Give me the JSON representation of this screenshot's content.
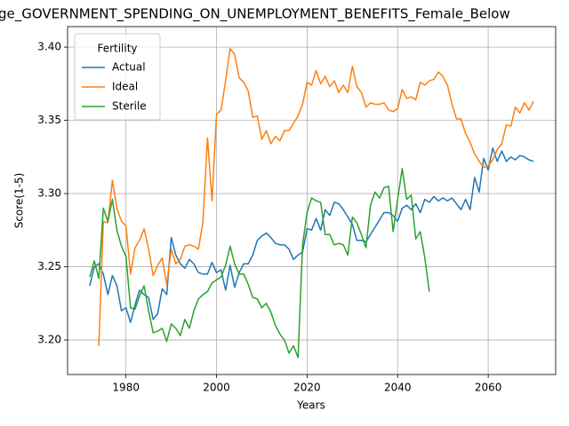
{
  "chart_data": {
    "type": "line",
    "title": "ge_GOVERNMENT_SPENDING_ON_UNEMPLOYMENT_BENEFITS_Female_Below",
    "x_label": "Years",
    "y_label": "Score(1-5)",
    "legend_title": "Fertility",
    "legend_loc": "upper left",
    "grid": true,
    "x": [
      1972,
      1973,
      1974,
      1975,
      1976,
      1977,
      1978,
      1979,
      1980,
      1981,
      1982,
      1983,
      1984,
      1985,
      1986,
      1987,
      1988,
      1989,
      1990,
      1991,
      1992,
      1993,
      1994,
      1995,
      1996,
      1997,
      1998,
      1999,
      2000,
      2001,
      2002,
      2003,
      2004,
      2005,
      2006,
      2007,
      2008,
      2009,
      2010,
      2011,
      2012,
      2013,
      2014,
      2015,
      2016,
      2017,
      2018,
      2019,
      2020,
      2021,
      2022,
      2023,
      2024,
      2025,
      2026,
      2027,
      2028,
      2029,
      2030,
      2031,
      2032,
      2033,
      2034,
      2035,
      2036,
      2037,
      2038,
      2039,
      2040,
      2041,
      2042,
      2043,
      2044,
      2045,
      2046,
      2047,
      2048,
      2049,
      2050,
      2051,
      2052,
      2053,
      2054,
      2055,
      2056,
      2057,
      2058,
      2059,
      2060,
      2061,
      2062,
      2063,
      2064,
      2065,
      2066,
      2067,
      2068,
      2069,
      2070
    ],
    "series": [
      {
        "name": "Actual",
        "color": "#1f77b4",
        "values": [
          3.237,
          3.25,
          3.252,
          3.245,
          3.231,
          3.244,
          3.237,
          3.22,
          3.222,
          3.212,
          3.224,
          3.234,
          3.231,
          3.229,
          3.214,
          3.218,
          3.235,
          3.231,
          3.27,
          3.258,
          3.252,
          3.249,
          3.255,
          3.252,
          3.246,
          3.245,
          3.245,
          3.253,
          3.246,
          3.248,
          3.234,
          3.251,
          3.236,
          3.246,
          3.252,
          3.252,
          3.258,
          3.268,
          3.271,
          3.273,
          3.27,
          3.266,
          3.265,
          3.265,
          3.262,
          3.255,
          3.258,
          3.26,
          3.276,
          3.275,
          3.283,
          3.275,
          3.289,
          3.285,
          3.294,
          3.293,
          3.289,
          3.284,
          3.279,
          3.268,
          3.268,
          3.267,
          3.272,
          3.277,
          3.282,
          3.287,
          3.287,
          3.285,
          3.281,
          3.29,
          3.292,
          3.289,
          3.293,
          3.287,
          3.296,
          3.294,
          3.298,
          3.295,
          3.297,
          3.295,
          3.297,
          3.293,
          3.289,
          3.296,
          3.289,
          3.311,
          3.301,
          3.324,
          3.316,
          3.331,
          3.322,
          3.329,
          3.322,
          3.325,
          3.323,
          3.326,
          3.325,
          3.323,
          3.322
        ]
      },
      {
        "name": "Ideal",
        "color": "#ff7f0e",
        "values": [
          null,
          null,
          3.196,
          3.281,
          3.28,
          3.309,
          3.29,
          3.281,
          3.278,
          3.245,
          3.263,
          3.268,
          3.276,
          3.262,
          3.244,
          3.251,
          3.256,
          3.238,
          3.262,
          3.252,
          3.255,
          3.264,
          3.265,
          3.264,
          3.262,
          3.281,
          3.338,
          3.295,
          3.354,
          3.357,
          3.377,
          3.399,
          3.395,
          3.379,
          3.376,
          3.37,
          3.352,
          3.353,
          3.337,
          3.343,
          3.334,
          3.339,
          3.336,
          3.343,
          3.343,
          3.348,
          3.353,
          3.361,
          3.376,
          3.374,
          3.384,
          3.375,
          3.38,
          3.373,
          3.377,
          3.369,
          3.374,
          3.369,
          3.387,
          3.373,
          3.369,
          3.359,
          3.362,
          3.361,
          3.361,
          3.362,
          3.357,
          3.356,
          3.358,
          3.371,
          3.365,
          3.366,
          3.364,
          3.376,
          3.374,
          3.377,
          3.378,
          3.383,
          3.38,
          3.374,
          3.361,
          3.351,
          3.351,
          3.341,
          3.335,
          3.327,
          3.322,
          3.318,
          3.319,
          3.323,
          3.33,
          3.334,
          3.347,
          3.346,
          3.359,
          3.355,
          3.362,
          3.357,
          3.363
        ]
      },
      {
        "name": "Sterile",
        "color": "#2ca02c",
        "values": [
          3.243,
          3.254,
          3.242,
          3.29,
          3.281,
          3.296,
          3.275,
          3.264,
          3.257,
          3.222,
          3.221,
          3.23,
          3.237,
          3.22,
          3.205,
          3.206,
          3.208,
          3.199,
          3.211,
          3.208,
          3.203,
          3.214,
          3.208,
          3.22,
          3.228,
          3.231,
          3.233,
          3.239,
          3.241,
          3.243,
          3.251,
          3.264,
          3.252,
          3.245,
          3.245,
          3.238,
          3.229,
          3.228,
          3.222,
          3.225,
          3.219,
          3.21,
          3.204,
          3.2,
          3.191,
          3.196,
          3.188,
          3.265,
          3.287,
          3.297,
          3.295,
          3.294,
          3.272,
          3.272,
          3.265,
          3.266,
          3.265,
          3.258,
          3.284,
          3.28,
          3.272,
          3.263,
          3.292,
          3.301,
          3.297,
          3.304,
          3.305,
          3.274,
          3.296,
          3.317,
          3.296,
          3.299,
          3.269,
          3.274,
          3.256,
          3.233,
          null,
          null,
          null,
          null,
          null,
          null,
          null,
          null,
          null,
          null,
          null,
          null,
          null,
          null,
          null,
          null,
          null,
          null,
          null,
          null,
          null,
          null,
          null
        ]
      }
    ],
    "xlim": [
      1967.1,
      2074.9
    ],
    "xticks": [
      1980,
      2000,
      2020,
      2040,
      2060
    ],
    "ylim": [
      3.1764,
      3.414
    ],
    "yticks": [
      {
        "value": 3.2,
        "label": "3.20"
      },
      {
        "value": 3.25,
        "label": "3.25"
      },
      {
        "value": 3.3,
        "label": "3.30"
      },
      {
        "value": 3.35,
        "label": "3.35"
      },
      {
        "value": 3.4,
        "label": "3.40"
      }
    ]
  }
}
